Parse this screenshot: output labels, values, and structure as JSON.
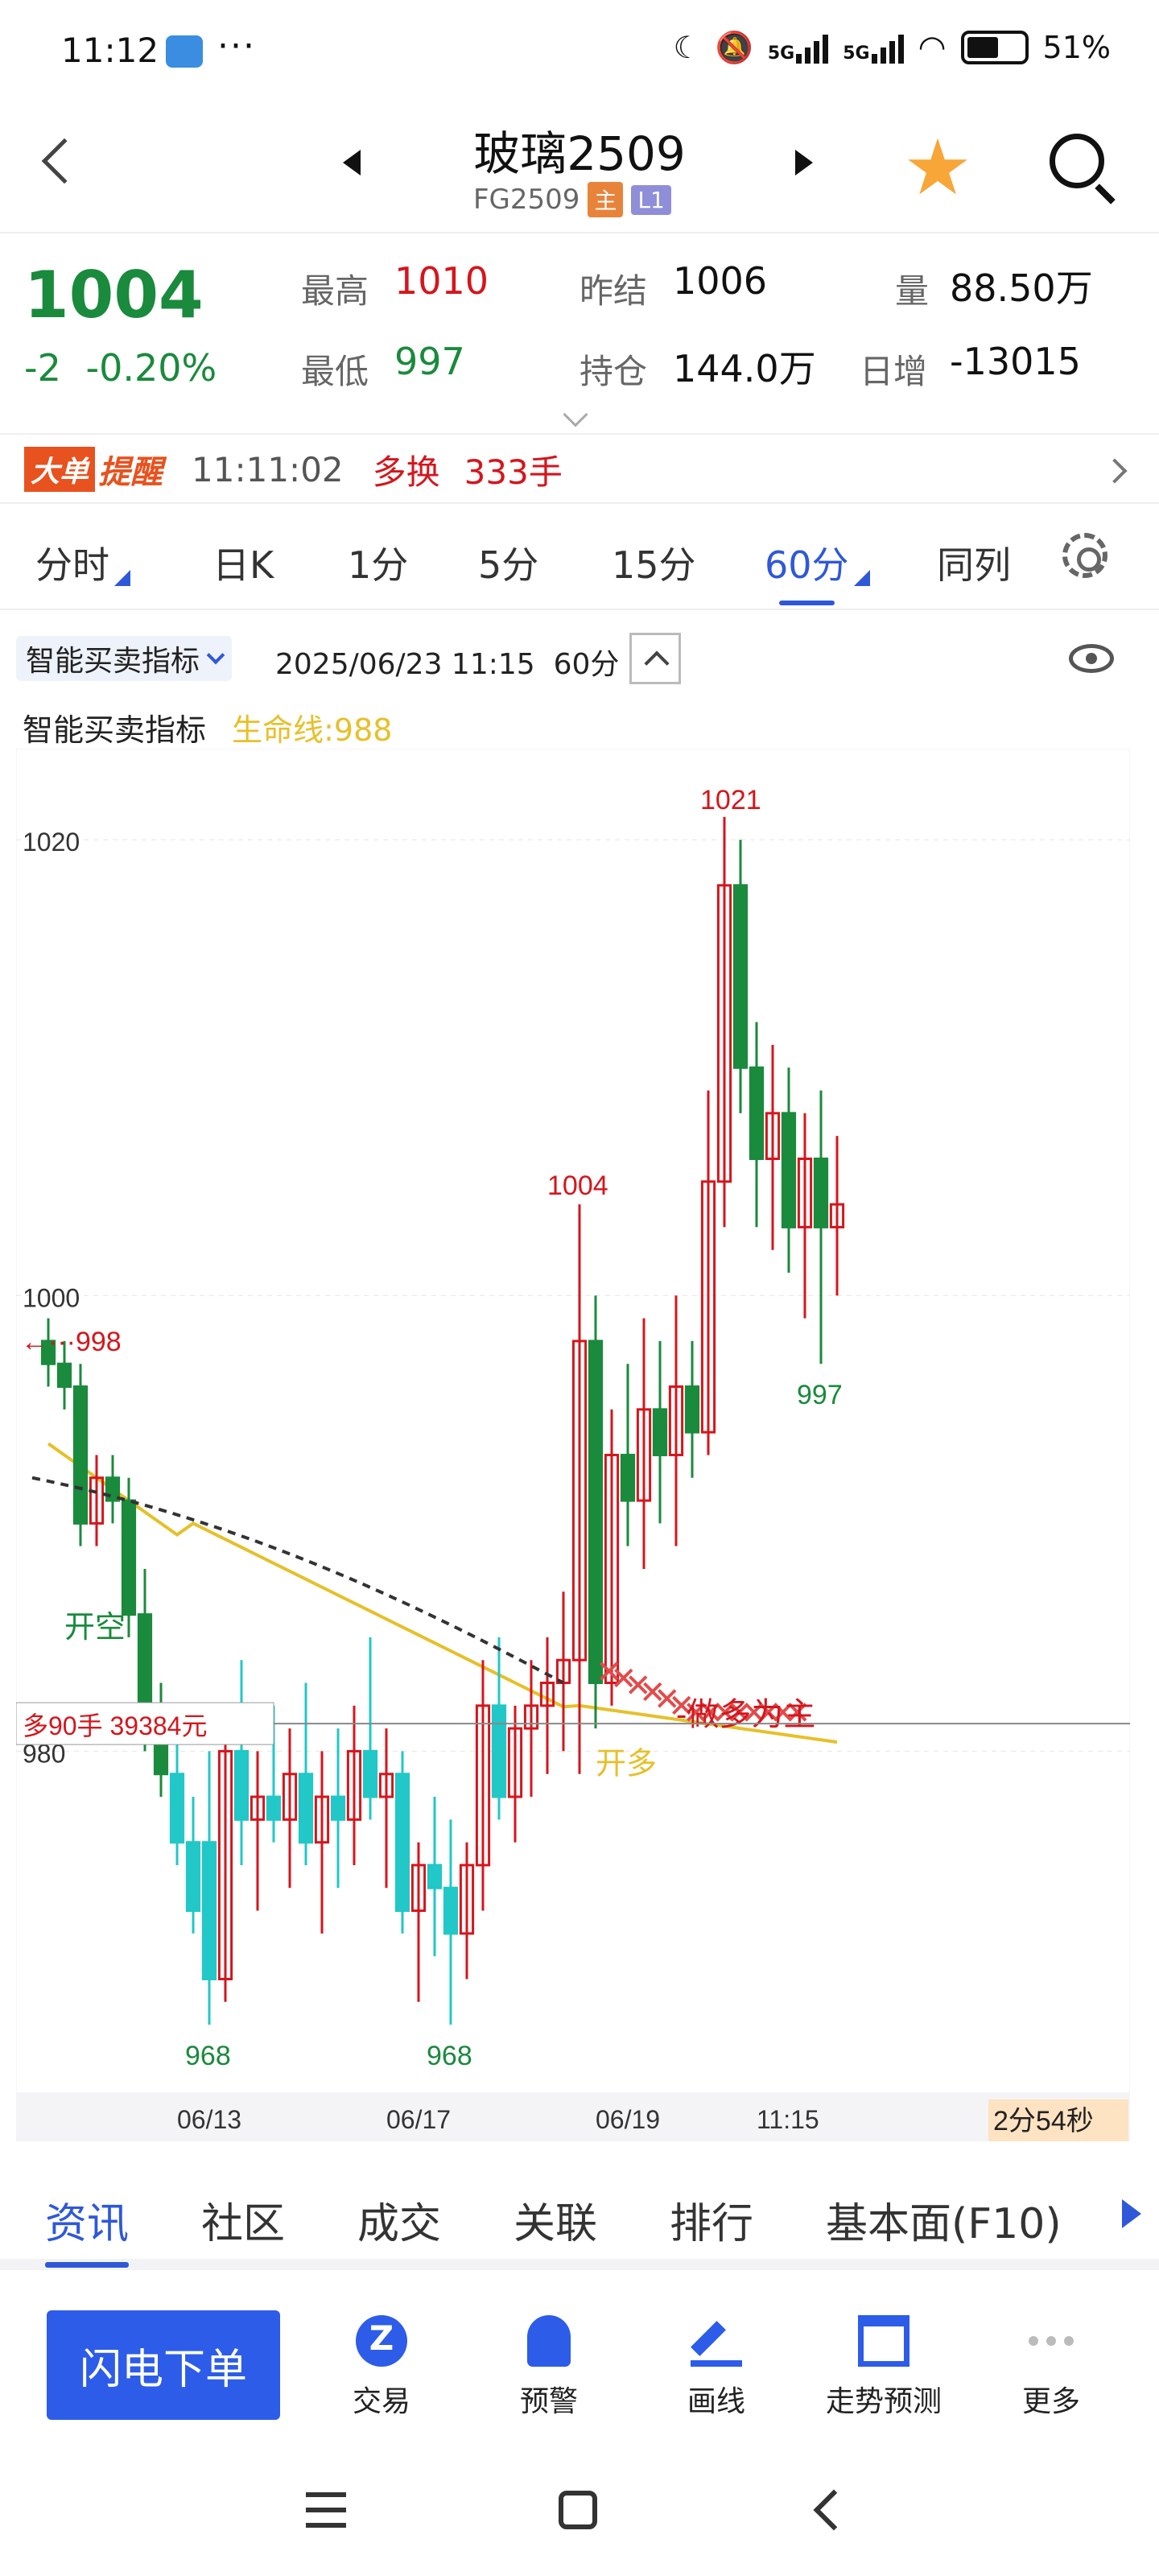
{
  "status_bar": {
    "time": "11:12",
    "dots": "···",
    "net1": "5G",
    "net2": "5G",
    "battery": "51%"
  },
  "header": {
    "title": "玻璃2509",
    "code": "FG2509",
    "badge_main": "主",
    "badge_level": "L1"
  },
  "quote": {
    "last": "1004",
    "change": "-2",
    "change_pct": "-0.20%",
    "high_label": "最高",
    "high": "1010",
    "low_label": "最低",
    "low": "997",
    "prev_settle_label": "昨结",
    "prev_settle": "1006",
    "open_int_label": "持仓",
    "open_int": "144.0万",
    "volume_label": "量",
    "volume": "88.50万",
    "daily_inc_label": "日增",
    "daily_inc": "-13015"
  },
  "alert": {
    "tag": "大单",
    "tag2": "提醒",
    "time": "11:11:02",
    "action": "多换",
    "lots": "333手"
  },
  "tabs": [
    {
      "label": "分时"
    },
    {
      "label": "日K"
    },
    {
      "label": "1分"
    },
    {
      "label": "5分"
    },
    {
      "label": "15分"
    },
    {
      "label": "60分",
      "active": true
    },
    {
      "label": "同列"
    }
  ],
  "indicator": {
    "name": "智能买卖指标",
    "datetime": "2025/06/23 11:15",
    "period": "60分",
    "legend_name": "智能买卖指标",
    "life_line": "生命线:988"
  },
  "chart_data": {
    "type": "candlestick",
    "y_ticks": [
      "1020",
      "1000",
      "980"
    ],
    "x_ticks": [
      "06/13",
      "06/17",
      "06/19",
      "11:15"
    ],
    "ylim": [
      965,
      1024
    ],
    "annotations": {
      "high_label": "1021",
      "mid_high_label": "1004",
      "recent_low_label": "997",
      "low1_label": "968",
      "low2_label": "968",
      "left_marker": "998",
      "open_short": "开空",
      "open_long": "开多",
      "long_bias": "做多为主",
      "position_box": "多90手  39384元",
      "countdown": "2分54秒"
    },
    "life_line_value": 988,
    "colors": {
      "up": "#d4161c",
      "down": "#1a8a3c",
      "down_cyan": "#22c7c7",
      "life": "#e6c02a",
      "trail": "#333333"
    },
    "candles": [
      [
        1,
        998,
        999,
        996,
        997
      ],
      [
        2,
        997,
        998,
        995,
        996
      ],
      [
        3,
        996,
        997,
        989,
        990
      ],
      [
        4,
        990,
        993,
        989,
        992
      ],
      [
        5,
        992,
        993,
        990,
        991
      ],
      [
        6,
        991,
        992,
        985,
        986
      ],
      [
        7,
        986,
        988,
        980,
        981
      ],
      [
        8,
        981,
        983,
        978,
        979
      ],
      [
        9,
        979,
        981,
        975,
        976
      ],
      [
        10,
        976,
        978,
        972,
        973
      ],
      [
        11,
        976,
        980,
        968,
        970
      ],
      [
        12,
        970,
        982,
        969,
        980
      ],
      [
        13,
        980,
        984,
        975,
        977
      ],
      [
        14,
        977,
        980,
        973,
        978
      ],
      [
        15,
        978,
        982,
        976,
        977
      ],
      [
        16,
        977,
        981,
        974,
        979
      ],
      [
        17,
        979,
        983,
        975,
        976
      ],
      [
        18,
        976,
        980,
        972,
        978
      ],
      [
        19,
        978,
        981,
        974,
        977
      ],
      [
        20,
        977,
        982,
        975,
        980
      ],
      [
        21,
        980,
        985,
        977,
        978
      ],
      [
        22,
        978,
        981,
        974,
        979
      ],
      [
        23,
        979,
        980,
        972,
        973
      ],
      [
        24,
        973,
        976,
        969,
        975
      ],
      [
        25,
        975,
        978,
        971,
        974
      ],
      [
        26,
        974,
        977,
        968,
        972
      ],
      [
        27,
        972,
        976,
        970,
        975
      ],
      [
        28,
        975,
        984,
        973,
        982
      ],
      [
        29,
        982,
        985,
        977,
        978
      ],
      [
        30,
        978,
        982,
        976,
        981
      ],
      [
        31,
        981,
        984,
        978,
        982
      ],
      [
        32,
        982,
        985,
        979,
        983
      ],
      [
        33,
        983,
        987,
        980,
        984
      ],
      [
        34,
        984,
        1004,
        979,
        998
      ],
      [
        35,
        998,
        1000,
        981,
        983
      ],
      [
        36,
        983,
        995,
        982,
        993
      ],
      [
        37,
        993,
        997,
        989,
        991
      ],
      [
        38,
        991,
        999,
        988,
        995
      ],
      [
        39,
        995,
        998,
        990,
        993
      ],
      [
        40,
        993,
        1000,
        989,
        996
      ],
      [
        41,
        996,
        998,
        992,
        994
      ],
      [
        42,
        994,
        1009,
        993,
        1005
      ],
      [
        43,
        1005,
        1021,
        1003,
        1018
      ],
      [
        44,
        1018,
        1020,
        1008,
        1010
      ],
      [
        45,
        1010,
        1012,
        1003,
        1006
      ],
      [
        46,
        1006,
        1011,
        1002,
        1008
      ],
      [
        47,
        1008,
        1010,
        1001,
        1003
      ],
      [
        48,
        1003,
        1008,
        999,
        1006
      ],
      [
        49,
        1006,
        1009,
        997,
        1003
      ],
      [
        50,
        1003,
        1007,
        1000,
        1004
      ]
    ]
  },
  "bottom_tabs": [
    {
      "label": "资讯",
      "active": true
    },
    {
      "label": "社区"
    },
    {
      "label": "成交"
    },
    {
      "label": "关联"
    },
    {
      "label": "排行"
    },
    {
      "label": "基本面(F10)"
    }
  ],
  "actions": {
    "flash_order": "闪电下单",
    "trade": "交易",
    "alert": "预警",
    "draw": "画线",
    "forecast": "走势预测",
    "more": "更多"
  }
}
